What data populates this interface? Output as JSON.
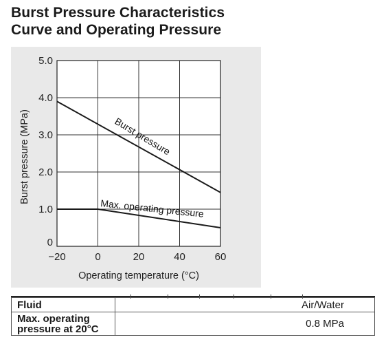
{
  "header": {
    "title_line1": "Burst Pressure Characteristics",
    "title_line2": "Curve and Operating Pressure"
  },
  "chart_data": {
    "type": "line",
    "xlabel": "Operating temperature (°C)",
    "ylabel": "Burst pressure (MPa)",
    "xlim": [
      -20,
      60
    ],
    "ylim": [
      0,
      5.0
    ],
    "x_ticks": [
      "−20",
      "0",
      "20",
      "40",
      "60"
    ],
    "x_tick_values": [
      -20,
      0,
      20,
      40,
      60
    ],
    "y_ticks": [
      "0",
      "1.0",
      "2.0",
      "3.0",
      "4.0",
      "5.0"
    ],
    "y_tick_values": [
      0,
      1,
      2,
      3,
      4,
      5
    ],
    "grid": true,
    "series": [
      {
        "name": "Burst pressure",
        "x": [
          -20,
          60
        ],
        "y": [
          3.9,
          1.45
        ],
        "color": "#1a1a1a"
      },
      {
        "name": "Max. operating pressure",
        "x": [
          -20,
          0,
          60
        ],
        "y": [
          1.0,
          1.0,
          0.5
        ],
        "color": "#1a1a1a"
      }
    ]
  },
  "spec_table": {
    "rows": [
      {
        "key": "Fluid",
        "value": "Air/Water"
      },
      {
        "key": "Max. operating pressure at 20°C",
        "value": "0.8 MPa"
      }
    ]
  }
}
